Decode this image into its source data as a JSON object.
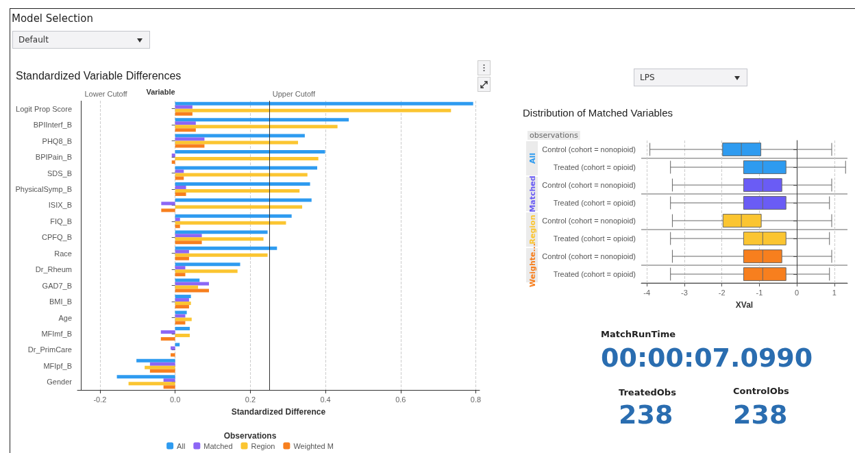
{
  "chart_data": [
    {
      "type": "other",
      "title": "Model Selection",
      "annotations": [
        "Default"
      ]
    },
    {
      "type": "bar",
      "orientation": "horizontal",
      "title": "Standardized Variable Differences",
      "xlabel": "Standardized Difference",
      "ylabel": "Variable",
      "legend_title": "Observations",
      "legend": "bottom",
      "grid": "x",
      "xlim": [
        -0.26,
        0.81
      ],
      "xticks": [
        {
          "value": -0.2,
          "label": "-0.2"
        },
        {
          "value": 0,
          "label": "0.0"
        },
        {
          "value": 0.2,
          "label": "0.2"
        },
        {
          "value": 0.4,
          "label": "0.4"
        },
        {
          "value": 0.6,
          "label": "0.6"
        },
        {
          "value": 0.8,
          "label": "0.8"
        }
      ],
      "ref_lines": [
        {
          "axis": "x",
          "value": -0.25,
          "label": "Lower Cutoff",
          "color": "#333333"
        },
        {
          "axis": "x",
          "value": 0.25,
          "label": "Upper Cutoff",
          "color": "#333333"
        }
      ],
      "categories": [
        "Logit Prop Score",
        "BPIInterf_B",
        "PHQ8_B",
        "BPIPain_B",
        "SDS_B",
        "PhysicalSymp_B",
        "ISIX_B",
        "FIQ_B",
        "CPFQ_B",
        "Race",
        "Dr_Rheum",
        "GAD7_B",
        "BMI_B",
        "Age",
        "MFImf_B",
        "Dr_PrimCare",
        "MFIpf_B",
        "Gender"
      ],
      "series": [
        {
          "name": "All",
          "color": "#2e9bf0",
          "values": [
            0.793,
            0.462,
            0.345,
            0.399,
            0.378,
            0.359,
            0.363,
            0.31,
            0.246,
            0.271,
            0.173,
            0.065,
            0.042,
            0.031,
            0.039,
            0.012,
            -0.103,
            -0.155
          ]
        },
        {
          "name": "Matched",
          "color": "#8c66f5",
          "values": [
            0.046,
            0.055,
            0.078,
            -0.009,
            0.023,
            0.029,
            -0.037,
            0.013,
            0.071,
            0.037,
            0.027,
            0.09,
            0.037,
            0.027,
            -0.038,
            -0.012,
            -0.067,
            -0.031
          ]
        },
        {
          "name": "Region",
          "color": "#fbc531",
          "values": [
            0.734,
            0.432,
            0.327,
            0.381,
            0.352,
            0.331,
            0.338,
            0.295,
            0.235,
            0.246,
            0.166,
            0.061,
            0.042,
            0.044,
            0.039,
            0,
            -0.081,
            -0.124
          ]
        },
        {
          "name": "Weighted M",
          "color": "#f77f1e",
          "values": [
            0.046,
            0.055,
            0.078,
            -0.009,
            0.023,
            0.029,
            -0.037,
            0.013,
            0.071,
            0.037,
            0.027,
            0.09,
            0.037,
            0.027,
            -0.038,
            -0.012,
            -0.067,
            -0.031
          ]
        }
      ]
    },
    {
      "type": "box",
      "orientation": "horizontal",
      "title": "Distribution of Matched Variables",
      "xlabel": "XVal",
      "legend_title": "observations",
      "annotations": [
        "LPS"
      ],
      "grid": "x",
      "xlim": [
        -4.15,
        1.35
      ],
      "xticks": [
        -4,
        -3,
        -2,
        -1,
        0,
        1
      ],
      "categories": [
        "Control (cohort = nonopioid)",
        "Treated (cohort = opioid)",
        "Control (cohort = nonopioid)",
        "Treated (cohort = opioid)",
        "Control (cohort = nonopioid)",
        "Treated (cohort = opioid)",
        "Control (cohort = nonopioid)",
        "Treated (cohort = opioid)"
      ],
      "series": [
        {
          "name": "All",
          "color": "#2e9bf0",
          "boxes": [
            {
              "low": -3.92,
              "q1": -1.98,
              "median": -1.48,
              "q3": -0.96,
              "high": 0.93
            },
            {
              "low": -3.37,
              "q1": -1.42,
              "median": -0.91,
              "q3": -0.29,
              "high": 1.3
            },
            null,
            null,
            null,
            null,
            null,
            null
          ]
        },
        {
          "name": "Matched",
          "color": "#6a5cf5",
          "boxes": [
            null,
            null,
            {
              "low": -3.32,
              "q1": -1.42,
              "median": -0.91,
              "q3": -0.4,
              "high": 0.93
            },
            {
              "low": -3.37,
              "q1": -1.42,
              "median": -0.91,
              "q3": -0.29,
              "high": 0.87
            },
            null,
            null,
            null,
            null
          ]
        },
        {
          "name": "Region",
          "color": "#fbc531",
          "boxes": [
            null,
            null,
            null,
            null,
            {
              "low": -3.32,
              "q1": -1.97,
              "median": -1.48,
              "q3": -0.95,
              "high": 0.93
            },
            {
              "low": -3.37,
              "q1": -1.42,
              "median": -0.91,
              "q3": -0.29,
              "high": 0.87
            },
            null,
            null
          ]
        },
        {
          "name": "Weighte...",
          "color": "#f77f1e",
          "boxes": [
            null,
            null,
            null,
            null,
            null,
            null,
            {
              "low": -3.32,
              "q1": -1.42,
              "median": -0.91,
              "q3": -0.4,
              "high": 0.93
            },
            {
              "low": -3.37,
              "q1": -1.42,
              "median": -0.91,
              "q3": -0.29,
              "high": 0.87
            }
          ]
        }
      ]
    },
    {
      "type": "other",
      "annotations": [
        "MatchRunTime",
        "00:00:07.0990",
        "TreatedObs",
        "238",
        "ControlObs",
        "238"
      ]
    }
  ]
}
